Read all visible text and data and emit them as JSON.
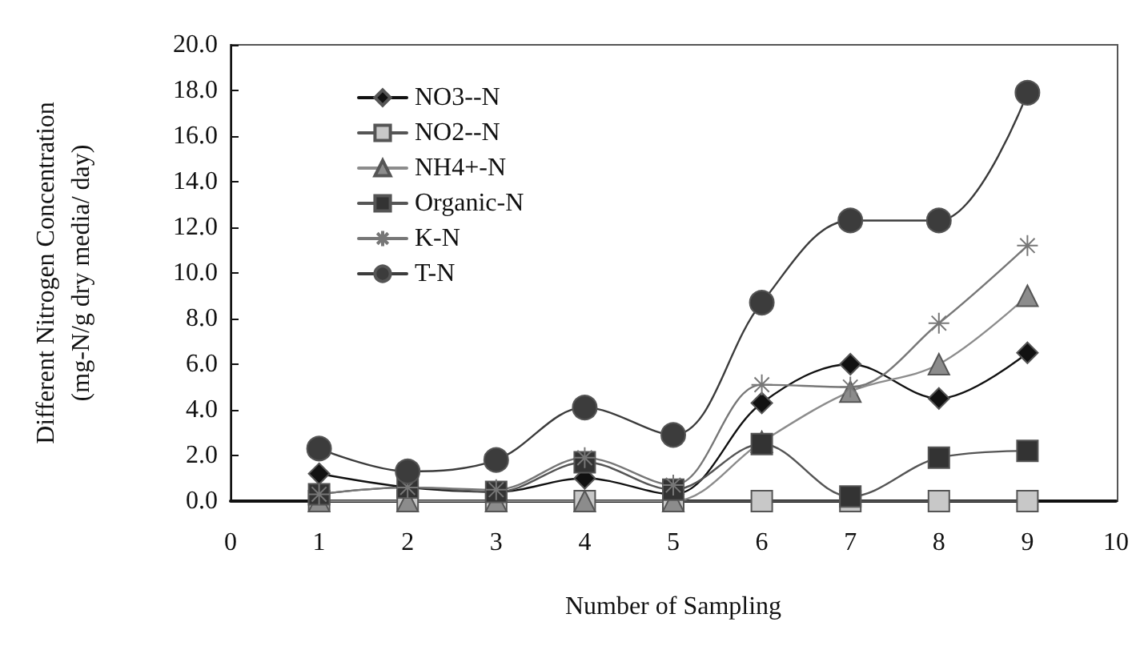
{
  "chart_data": {
    "type": "line",
    "xlabel": "Number of Sampling",
    "ylabel": "Different Nitrogen Concentration\n(mg-N/g dry media/ day)",
    "x": [
      1,
      2,
      3,
      4,
      5,
      6,
      7,
      8,
      9
    ],
    "xlim": [
      0,
      10
    ],
    "xticks": [
      0,
      1,
      2,
      3,
      4,
      5,
      6,
      7,
      8,
      9,
      10
    ],
    "ylim": [
      0,
      20
    ],
    "yticks": [
      {
        "value": 0,
        "label": "0.0"
      },
      {
        "value": 2,
        "label": "2.0"
      },
      {
        "value": 4,
        "label": "4.0"
      },
      {
        "value": 6,
        "label": "6.0"
      },
      {
        "value": 8,
        "label": "8.0"
      },
      {
        "value": 10,
        "label": "10.0"
      },
      {
        "value": 12,
        "label": "12.0"
      },
      {
        "value": 14,
        "label": "14.0"
      },
      {
        "value": 16,
        "label": "16.0"
      },
      {
        "value": 18,
        "label": "18.0"
      },
      {
        "value": 20,
        "label": "20.0"
      }
    ],
    "grid": false,
    "legend": "top left",
    "series": [
      {
        "name": "NO3--N",
        "color": "#111111",
        "marker": "diamond",
        "values": [
          1.2,
          0.6,
          0.4,
          1.0,
          0.3,
          4.3,
          6.0,
          4.5,
          6.5
        ]
      },
      {
        "name": "NO2--N",
        "color": "#c8c8c8",
        "marker": "square",
        "values": [
          0,
          0,
          0,
          0,
          0,
          0,
          0,
          0,
          0
        ]
      },
      {
        "name": "NH4+-N",
        "color": "#8c8c8c",
        "marker": "triangle",
        "values": [
          0,
          0,
          0,
          0,
          0,
          2.6,
          4.8,
          6.0,
          9.0
        ]
      },
      {
        "name": "Organic-N",
        "color": "#333333",
        "marker": "square",
        "values": [
          0.3,
          0.6,
          0.4,
          1.7,
          0.5,
          2.5,
          0.2,
          1.9,
          2.2
        ]
      },
      {
        "name": "K-N",
        "color": "#777777",
        "marker": "cross",
        "values": [
          0.3,
          0.6,
          0.5,
          1.9,
          0.7,
          5.1,
          5.0,
          7.8,
          11.2
        ]
      },
      {
        "name": "T-N",
        "color": "#3c3c3c",
        "marker": "circle",
        "values": [
          2.3,
          1.3,
          1.8,
          4.1,
          2.9,
          8.7,
          12.3,
          12.3,
          17.9
        ]
      }
    ]
  }
}
